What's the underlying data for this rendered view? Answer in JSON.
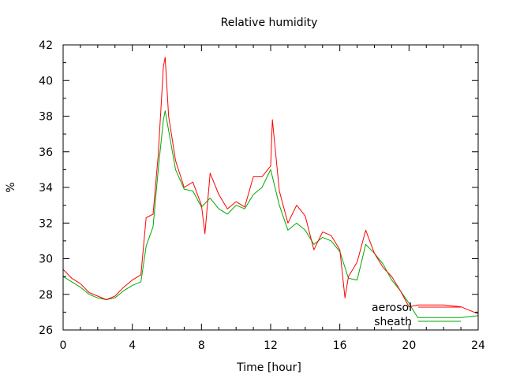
{
  "chart_data": {
    "type": "line",
    "title": "Relative humidity",
    "xlabel": "Time [hour]",
    "ylabel": "%",
    "xlim": [
      0,
      24
    ],
    "ylim": [
      26,
      42
    ],
    "x_ticks": [
      0,
      4,
      8,
      12,
      16,
      20,
      24
    ],
    "y_ticks": [
      26,
      28,
      30,
      32,
      34,
      36,
      38,
      40,
      42
    ],
    "grid": false,
    "legend": "bottom-right",
    "series": [
      {
        "name": "aerosol",
        "color": "#ff0000",
        "x": [
          0,
          0.5,
          1,
          1.5,
          2,
          2.5,
          3,
          3.5,
          4,
          4.5,
          4.8,
          5.2,
          5.5,
          5.8,
          5.9,
          6.1,
          6.5,
          7,
          7.5,
          8,
          8.2,
          8.5,
          9,
          9.5,
          10,
          10.5,
          11,
          11.5,
          12,
          12.1,
          12.5,
          13,
          13.5,
          14,
          14.5,
          15,
          15.5,
          16,
          16.3,
          16.5,
          17,
          17.5,
          18,
          18.5,
          19,
          19.5,
          20,
          20.5,
          21,
          22,
          23,
          24
        ],
        "y": [
          29.4,
          28.9,
          28.6,
          28.1,
          27.9,
          27.7,
          27.9,
          28.4,
          28.8,
          29.1,
          32.3,
          32.5,
          35.8,
          40.8,
          41.3,
          38.0,
          35.5,
          34.0,
          34.3,
          33.0,
          31.4,
          34.8,
          33.6,
          32.8,
          33.2,
          32.9,
          34.6,
          34.6,
          35.2,
          37.8,
          33.8,
          32.0,
          33.0,
          32.4,
          30.5,
          31.5,
          31.3,
          30.5,
          27.8,
          29.0,
          29.8,
          31.6,
          30.3,
          29.5,
          29.0,
          28.2,
          27.3,
          27.4,
          27.4,
          27.4,
          27.3,
          26.9
        ]
      },
      {
        "name": "sheath",
        "color": "#00aa00",
        "x": [
          0,
          0.5,
          1,
          1.5,
          2,
          2.5,
          3,
          3.5,
          4,
          4.5,
          4.8,
          5.2,
          5.5,
          5.8,
          5.9,
          6.1,
          6.5,
          7,
          7.5,
          8,
          8.5,
          9,
          9.5,
          10,
          10.5,
          11,
          11.5,
          12,
          12.5,
          13,
          13.5,
          14,
          14.5,
          15,
          15.5,
          16,
          16.5,
          17,
          17.5,
          18,
          18.5,
          19,
          19.5,
          20,
          20.5,
          21,
          22,
          23,
          24
        ],
        "y": [
          29.0,
          28.7,
          28.4,
          28.0,
          27.8,
          27.7,
          27.8,
          28.2,
          28.5,
          28.7,
          30.7,
          31.8,
          35.0,
          37.8,
          38.3,
          37.2,
          35.0,
          33.9,
          33.8,
          32.9,
          33.4,
          32.8,
          32.5,
          33.0,
          32.8,
          33.6,
          34.0,
          35.0,
          33.0,
          31.6,
          32.0,
          31.6,
          30.8,
          31.2,
          31.0,
          30.4,
          28.9,
          28.8,
          30.8,
          30.3,
          29.7,
          28.8,
          28.2,
          27.5,
          26.7,
          26.7,
          26.7,
          26.7,
          26.8
        ]
      }
    ]
  }
}
